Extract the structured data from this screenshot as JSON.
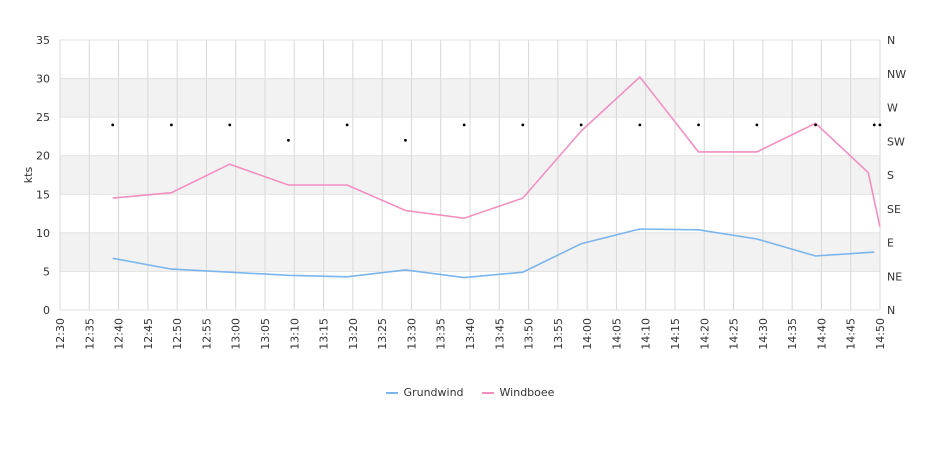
{
  "chart_data": {
    "type": "line",
    "ylabel": "kts",
    "ylim": [
      0,
      35
    ],
    "yticks": [
      0,
      5,
      10,
      15,
      20,
      25,
      30,
      35
    ],
    "right_ticks": [
      "N",
      "NW",
      "W",
      "SW",
      "S",
      "SE",
      "E",
      "NE",
      "N"
    ],
    "x_ticks": [
      "12:30",
      "12:35",
      "12:40",
      "12:45",
      "12:50",
      "12:55",
      "13:00",
      "13:05",
      "13:10",
      "13:15",
      "13:20",
      "13:25",
      "13:30",
      "13:35",
      "13:40",
      "13:45",
      "13:50",
      "13:55",
      "14:00",
      "14:05",
      "14:10",
      "14:15",
      "14:20",
      "14:25",
      "14:30",
      "14:35",
      "14:40",
      "14:45",
      "14:50"
    ],
    "series": [
      {
        "name": "Grundwind",
        "color": "#7cb5ec",
        "points": [
          [
            12.65,
            6.7
          ],
          [
            12.817,
            5.3
          ],
          [
            12.983,
            4.9
          ],
          [
            13.15,
            4.5
          ],
          [
            13.317,
            4.3
          ],
          [
            13.483,
            5.2
          ],
          [
            13.65,
            4.2
          ],
          [
            13.817,
            4.9
          ],
          [
            13.983,
            8.6
          ],
          [
            14.15,
            10.5
          ],
          [
            14.317,
            10.4
          ],
          [
            14.483,
            9.2
          ],
          [
            14.65,
            7.0
          ],
          [
            14.817,
            7.5
          ]
        ]
      },
      {
        "name": "Windboee",
        "color": "#f28fbf",
        "points": [
          [
            12.65,
            14.5
          ],
          [
            12.817,
            15.2
          ],
          [
            12.983,
            18.9
          ],
          [
            13.15,
            16.2
          ],
          [
            13.317,
            16.2
          ],
          [
            13.483,
            12.9
          ],
          [
            13.65,
            11.9
          ],
          [
            13.817,
            14.5
          ],
          [
            13.983,
            23.2
          ],
          [
            14.15,
            30.2
          ],
          [
            14.317,
            20.5
          ],
          [
            14.483,
            20.5
          ],
          [
            14.65,
            24.2
          ],
          [
            14.8,
            17.8
          ],
          [
            14.833,
            10.8
          ]
        ]
      }
    ],
    "direction_points": [
      [
        12.65,
        24
      ],
      [
        12.817,
        24
      ],
      [
        12.983,
        24
      ],
      [
        13.15,
        22
      ],
      [
        13.317,
        24
      ],
      [
        13.483,
        22
      ],
      [
        13.65,
        24
      ],
      [
        13.817,
        24
      ],
      [
        13.983,
        24
      ],
      [
        14.15,
        24
      ],
      [
        14.317,
        24
      ],
      [
        14.483,
        24
      ],
      [
        14.65,
        24
      ],
      [
        14.817,
        24
      ],
      [
        14.833,
        24
      ]
    ]
  }
}
